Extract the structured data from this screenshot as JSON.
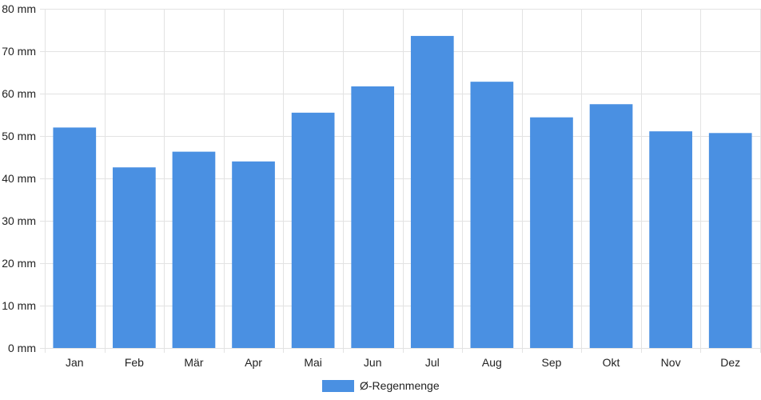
{
  "chart_data": {
    "type": "bar",
    "title": "",
    "xlabel": "",
    "ylabel": "",
    "categories": [
      "Jan",
      "Feb",
      "Mär",
      "Apr",
      "Mai",
      "Jun",
      "Jul",
      "Aug",
      "Sep",
      "Okt",
      "Nov",
      "Dez"
    ],
    "series": [
      {
        "name": "Ø-Regenmenge",
        "values": [
          52,
          42.6,
          46.3,
          44,
          55.5,
          61.7,
          73.6,
          62.8,
          54.4,
          57.5,
          51.1,
          50.7
        ],
        "color": "#4a90e2"
      }
    ],
    "ylim": [
      0,
      80
    ],
    "yticks": [
      0,
      10,
      20,
      30,
      40,
      50,
      60,
      70,
      80
    ],
    "ytick_labels": [
      "0 mm",
      "10 mm",
      "20 mm",
      "30 mm",
      "40 mm",
      "50 mm",
      "60 mm",
      "70 mm",
      "80 mm"
    ],
    "grid": true,
    "legend_position": "bottom-center"
  },
  "colors": {
    "bar": "#4a90e2",
    "grid": "#e3e3e3",
    "axis_text": "#222222"
  }
}
